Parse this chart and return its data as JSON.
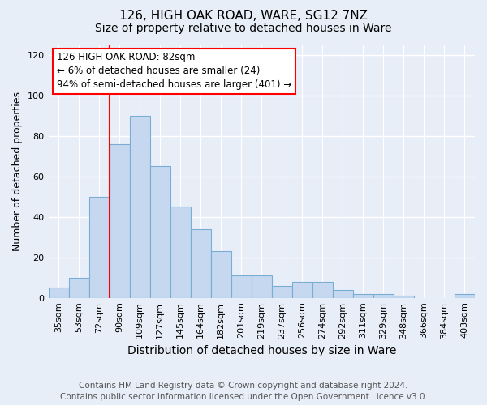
{
  "title1": "126, HIGH OAK ROAD, WARE, SG12 7NZ",
  "title2": "Size of property relative to detached houses in Ware",
  "xlabel": "Distribution of detached houses by size in Ware",
  "ylabel": "Number of detached properties",
  "categories": [
    "35sqm",
    "53sqm",
    "72sqm",
    "90sqm",
    "109sqm",
    "127sqm",
    "145sqm",
    "164sqm",
    "182sqm",
    "201sqm",
    "219sqm",
    "237sqm",
    "256sqm",
    "274sqm",
    "292sqm",
    "311sqm",
    "329sqm",
    "348sqm",
    "366sqm",
    "384sqm",
    "403sqm"
  ],
  "values": [
    5,
    10,
    50,
    76,
    90,
    65,
    45,
    34,
    23,
    11,
    11,
    6,
    8,
    8,
    4,
    2,
    2,
    1,
    0,
    0,
    2
  ],
  "bar_color": "#c5d8f0",
  "bar_edge_color": "#7aadd4",
  "vline_color": "red",
  "vline_pos": 2.5,
  "ylim": [
    0,
    125
  ],
  "yticks": [
    0,
    20,
    40,
    60,
    80,
    100,
    120
  ],
  "annotation_text": "126 HIGH OAK ROAD: 82sqm\n← 6% of detached houses are smaller (24)\n94% of semi-detached houses are larger (401) →",
  "annotation_box_color": "white",
  "annotation_box_edge_color": "red",
  "footer_line1": "Contains HM Land Registry data © Crown copyright and database right 2024.",
  "footer_line2": "Contains public sector information licensed under the Open Government Licence v3.0.",
  "background_color": "#e8eef8",
  "grid_color": "white",
  "title1_fontsize": 11,
  "title2_fontsize": 10,
  "xlabel_fontsize": 10,
  "ylabel_fontsize": 9,
  "tick_fontsize": 8,
  "footer_fontsize": 7.5
}
